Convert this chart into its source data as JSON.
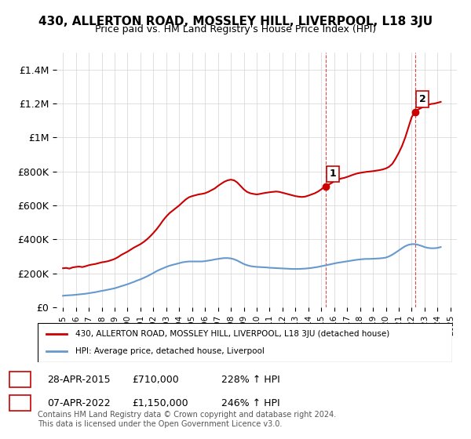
{
  "title": "430, ALLERTON ROAD, MOSSLEY HILL, LIVERPOOL, L18 3JU",
  "subtitle": "Price paid vs. HM Land Registry's House Price Index (HPI)",
  "ylabel_ticks": [
    "£0",
    "£200K",
    "£400K",
    "£600K",
    "£800K",
    "£1M",
    "£1.2M",
    "£1.4M"
  ],
  "ytick_vals": [
    0,
    200000,
    400000,
    600000,
    800000,
    1000000,
    1200000,
    1400000
  ],
  "ylim": [
    0,
    1500000
  ],
  "xlim_start": 1994.5,
  "xlim_end": 2025.5,
  "red_color": "#cc0000",
  "blue_color": "#6699cc",
  "marker1_x": 2015.32,
  "marker1_y": 710000,
  "marker1_label": "1",
  "marker2_x": 2022.27,
  "marker2_y": 1150000,
  "marker2_label": "2",
  "annotation1": [
    "1",
    "28-APR-2015",
    "£710,000",
    "228% ↑ HPI"
  ],
  "annotation2": [
    "2",
    "07-APR-2022",
    "£1,150,000",
    "246% ↑ HPI"
  ],
  "legend_line1": "430, ALLERTON ROAD, MOSSLEY HILL, LIVERPOOL, L18 3JU (detached house)",
  "legend_line2": "HPI: Average price, detached house, Liverpool",
  "footer": "Contains HM Land Registry data © Crown copyright and database right 2024.\nThis data is licensed under the Open Government Licence v3.0.",
  "red_x": [
    1995.0,
    1995.25,
    1995.5,
    1995.75,
    1996.0,
    1996.25,
    1996.5,
    1996.75,
    1997.0,
    1997.25,
    1997.5,
    1997.75,
    1998.0,
    1998.25,
    1998.5,
    1998.75,
    1999.0,
    1999.25,
    1999.5,
    1999.75,
    2000.0,
    2000.25,
    2000.5,
    2000.75,
    2001.0,
    2001.25,
    2001.5,
    2001.75,
    2002.0,
    2002.25,
    2002.5,
    2002.75,
    2003.0,
    2003.25,
    2003.5,
    2003.75,
    2004.0,
    2004.25,
    2004.5,
    2004.75,
    2005.0,
    2005.25,
    2005.5,
    2005.75,
    2006.0,
    2006.25,
    2006.5,
    2006.75,
    2007.0,
    2007.25,
    2007.5,
    2007.75,
    2008.0,
    2008.25,
    2008.5,
    2008.75,
    2009.0,
    2009.25,
    2009.5,
    2009.75,
    2010.0,
    2010.25,
    2010.5,
    2010.75,
    2011.0,
    2011.25,
    2011.5,
    2011.75,
    2012.0,
    2012.25,
    2012.5,
    2012.75,
    2013.0,
    2013.25,
    2013.5,
    2013.75,
    2014.0,
    2014.25,
    2014.5,
    2014.75,
    2015.0,
    2015.25,
    2015.5,
    2015.75,
    2016.0,
    2016.25,
    2016.5,
    2016.75,
    2017.0,
    2017.25,
    2017.5,
    2017.75,
    2018.0,
    2018.25,
    2018.5,
    2018.75,
    2019.0,
    2019.25,
    2019.5,
    2019.75,
    2020.0,
    2020.25,
    2020.5,
    2020.75,
    2021.0,
    2021.25,
    2021.5,
    2021.75,
    2022.0,
    2022.25,
    2022.5,
    2022.75,
    2023.0,
    2023.25,
    2023.5,
    2023.75,
    2024.0,
    2024.25
  ],
  "red_y": [
    230000,
    232000,
    228000,
    235000,
    238000,
    240000,
    237000,
    242000,
    248000,
    252000,
    255000,
    260000,
    265000,
    268000,
    272000,
    278000,
    285000,
    295000,
    308000,
    318000,
    328000,
    340000,
    352000,
    362000,
    372000,
    385000,
    400000,
    418000,
    438000,
    460000,
    485000,
    512000,
    535000,
    555000,
    570000,
    585000,
    600000,
    618000,
    635000,
    648000,
    655000,
    660000,
    665000,
    668000,
    672000,
    680000,
    690000,
    700000,
    715000,
    728000,
    740000,
    748000,
    752000,
    748000,
    735000,
    715000,
    695000,
    680000,
    672000,
    668000,
    665000,
    668000,
    672000,
    675000,
    678000,
    680000,
    682000,
    680000,
    675000,
    670000,
    665000,
    660000,
    655000,
    652000,
    650000,
    652000,
    658000,
    665000,
    672000,
    682000,
    695000,
    710000,
    720000,
    730000,
    742000,
    750000,
    758000,
    762000,
    768000,
    775000,
    782000,
    788000,
    792000,
    795000,
    798000,
    800000,
    802000,
    805000,
    808000,
    812000,
    818000,
    828000,
    845000,
    875000,
    910000,
    950000,
    1000000,
    1060000,
    1120000,
    1150000,
    1165000,
    1175000,
    1185000,
    1192000,
    1198000,
    1200000,
    1205000,
    1210000
  ],
  "blue_x": [
    1995.0,
    1995.25,
    1995.5,
    1995.75,
    1996.0,
    1996.25,
    1996.5,
    1996.75,
    1997.0,
    1997.25,
    1997.5,
    1997.75,
    1998.0,
    1998.25,
    1998.5,
    1998.75,
    1999.0,
    1999.25,
    1999.5,
    1999.75,
    2000.0,
    2000.25,
    2000.5,
    2000.75,
    2001.0,
    2001.25,
    2001.5,
    2001.75,
    2002.0,
    2002.25,
    2002.5,
    2002.75,
    2003.0,
    2003.25,
    2003.5,
    2003.75,
    2004.0,
    2004.25,
    2004.5,
    2004.75,
    2005.0,
    2005.25,
    2005.5,
    2005.75,
    2006.0,
    2006.25,
    2006.5,
    2006.75,
    2007.0,
    2007.25,
    2007.5,
    2007.75,
    2008.0,
    2008.25,
    2008.5,
    2008.75,
    2009.0,
    2009.25,
    2009.5,
    2009.75,
    2010.0,
    2010.25,
    2010.5,
    2010.75,
    2011.0,
    2011.25,
    2011.5,
    2011.75,
    2012.0,
    2012.25,
    2012.5,
    2012.75,
    2013.0,
    2013.25,
    2013.5,
    2013.75,
    2014.0,
    2014.25,
    2014.5,
    2014.75,
    2015.0,
    2015.25,
    2015.5,
    2015.75,
    2016.0,
    2016.25,
    2016.5,
    2016.75,
    2017.0,
    2017.25,
    2017.5,
    2017.75,
    2018.0,
    2018.25,
    2018.5,
    2018.75,
    2019.0,
    2019.25,
    2019.5,
    2019.75,
    2020.0,
    2020.25,
    2020.5,
    2020.75,
    2021.0,
    2021.25,
    2021.5,
    2021.75,
    2022.0,
    2022.25,
    2022.5,
    2022.75,
    2023.0,
    2023.25,
    2023.5,
    2023.75,
    2024.0,
    2024.25
  ],
  "blue_y": [
    68000,
    70000,
    71000,
    72000,
    74000,
    76000,
    78000,
    80000,
    83000,
    86000,
    89000,
    93000,
    97000,
    100000,
    104000,
    108000,
    112000,
    118000,
    124000,
    130000,
    136000,
    143000,
    150000,
    158000,
    165000,
    173000,
    182000,
    192000,
    202000,
    213000,
    222000,
    230000,
    238000,
    245000,
    250000,
    255000,
    260000,
    265000,
    268000,
    270000,
    270000,
    270000,
    270000,
    270000,
    272000,
    275000,
    278000,
    282000,
    285000,
    288000,
    290000,
    290000,
    288000,
    283000,
    275000,
    265000,
    255000,
    248000,
    243000,
    240000,
    238000,
    237000,
    236000,
    235000,
    233000,
    232000,
    231000,
    230000,
    229000,
    228000,
    227000,
    226000,
    226000,
    226000,
    227000,
    228000,
    230000,
    232000,
    235000,
    238000,
    242000,
    246000,
    250000,
    254000,
    258000,
    262000,
    265000,
    268000,
    271000,
    274000,
    277000,
    280000,
    282000,
    284000,
    285000,
    285000,
    286000,
    287000,
    288000,
    290000,
    293000,
    300000,
    310000,
    322000,
    335000,
    348000,
    360000,
    368000,
    372000,
    372000,
    368000,
    362000,
    355000,
    350000,
    348000,
    348000,
    350000,
    355000
  ]
}
